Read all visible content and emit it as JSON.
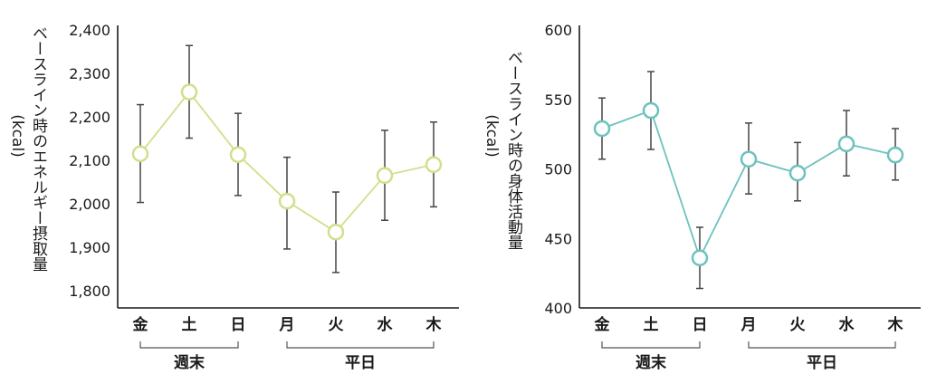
{
  "chart_data": [
    {
      "type": "line",
      "ylabel_main": "ベースライン時のエネルギー摂取量",
      "ylabel_unit": "(kcal)",
      "categories": [
        "金",
        "土",
        "日",
        "月",
        "火",
        "水",
        "木"
      ],
      "ylim": [
        1750,
        2400
      ],
      "yticks": [
        1800,
        1900,
        2000,
        2100,
        2200,
        2300,
        2400
      ],
      "ytick_labels": [
        "1,800",
        "1,900",
        "2,000",
        "2,100",
        "2,200",
        "2,300",
        "2,400"
      ],
      "series": [
        {
          "values": [
            2115,
            2257,
            2113,
            2006,
            1935,
            2065,
            2090
          ],
          "err_low": [
            2003,
            2151,
            2019,
            1896,
            1842,
            1962,
            1993
          ],
          "err_high": [
            2228,
            2364,
            2208,
            2107,
            2027,
            2169,
            2188
          ]
        }
      ],
      "groups": [
        {
          "label": "週末",
          "from": 0,
          "to": 2
        },
        {
          "label": "平日",
          "from": 3,
          "to": 6
        }
      ],
      "color": "#cfe08c"
    },
    {
      "type": "line",
      "ylabel_main": "ベースライン時の身体活動量",
      "ylabel_unit": "(kcal)",
      "categories": [
        "金",
        "土",
        "日",
        "月",
        "火",
        "水",
        "木"
      ],
      "ylim": [
        400,
        600
      ],
      "yticks": [
        400,
        450,
        500,
        550,
        600
      ],
      "ytick_labels": [
        "400",
        "450",
        "500",
        "550",
        "600"
      ],
      "series": [
        {
          "values": [
            529,
            542,
            436,
            507,
            497,
            518,
            510
          ],
          "err_low": [
            507,
            514,
            414,
            482,
            477,
            495,
            492
          ],
          "err_high": [
            551,
            570,
            458,
            533,
            519,
            542,
            529
          ]
        }
      ],
      "groups": [
        {
          "label": "週末",
          "from": 0,
          "to": 2
        },
        {
          "label": "平日",
          "from": 3,
          "to": 6
        }
      ],
      "color": "#6cc2bd"
    }
  ]
}
